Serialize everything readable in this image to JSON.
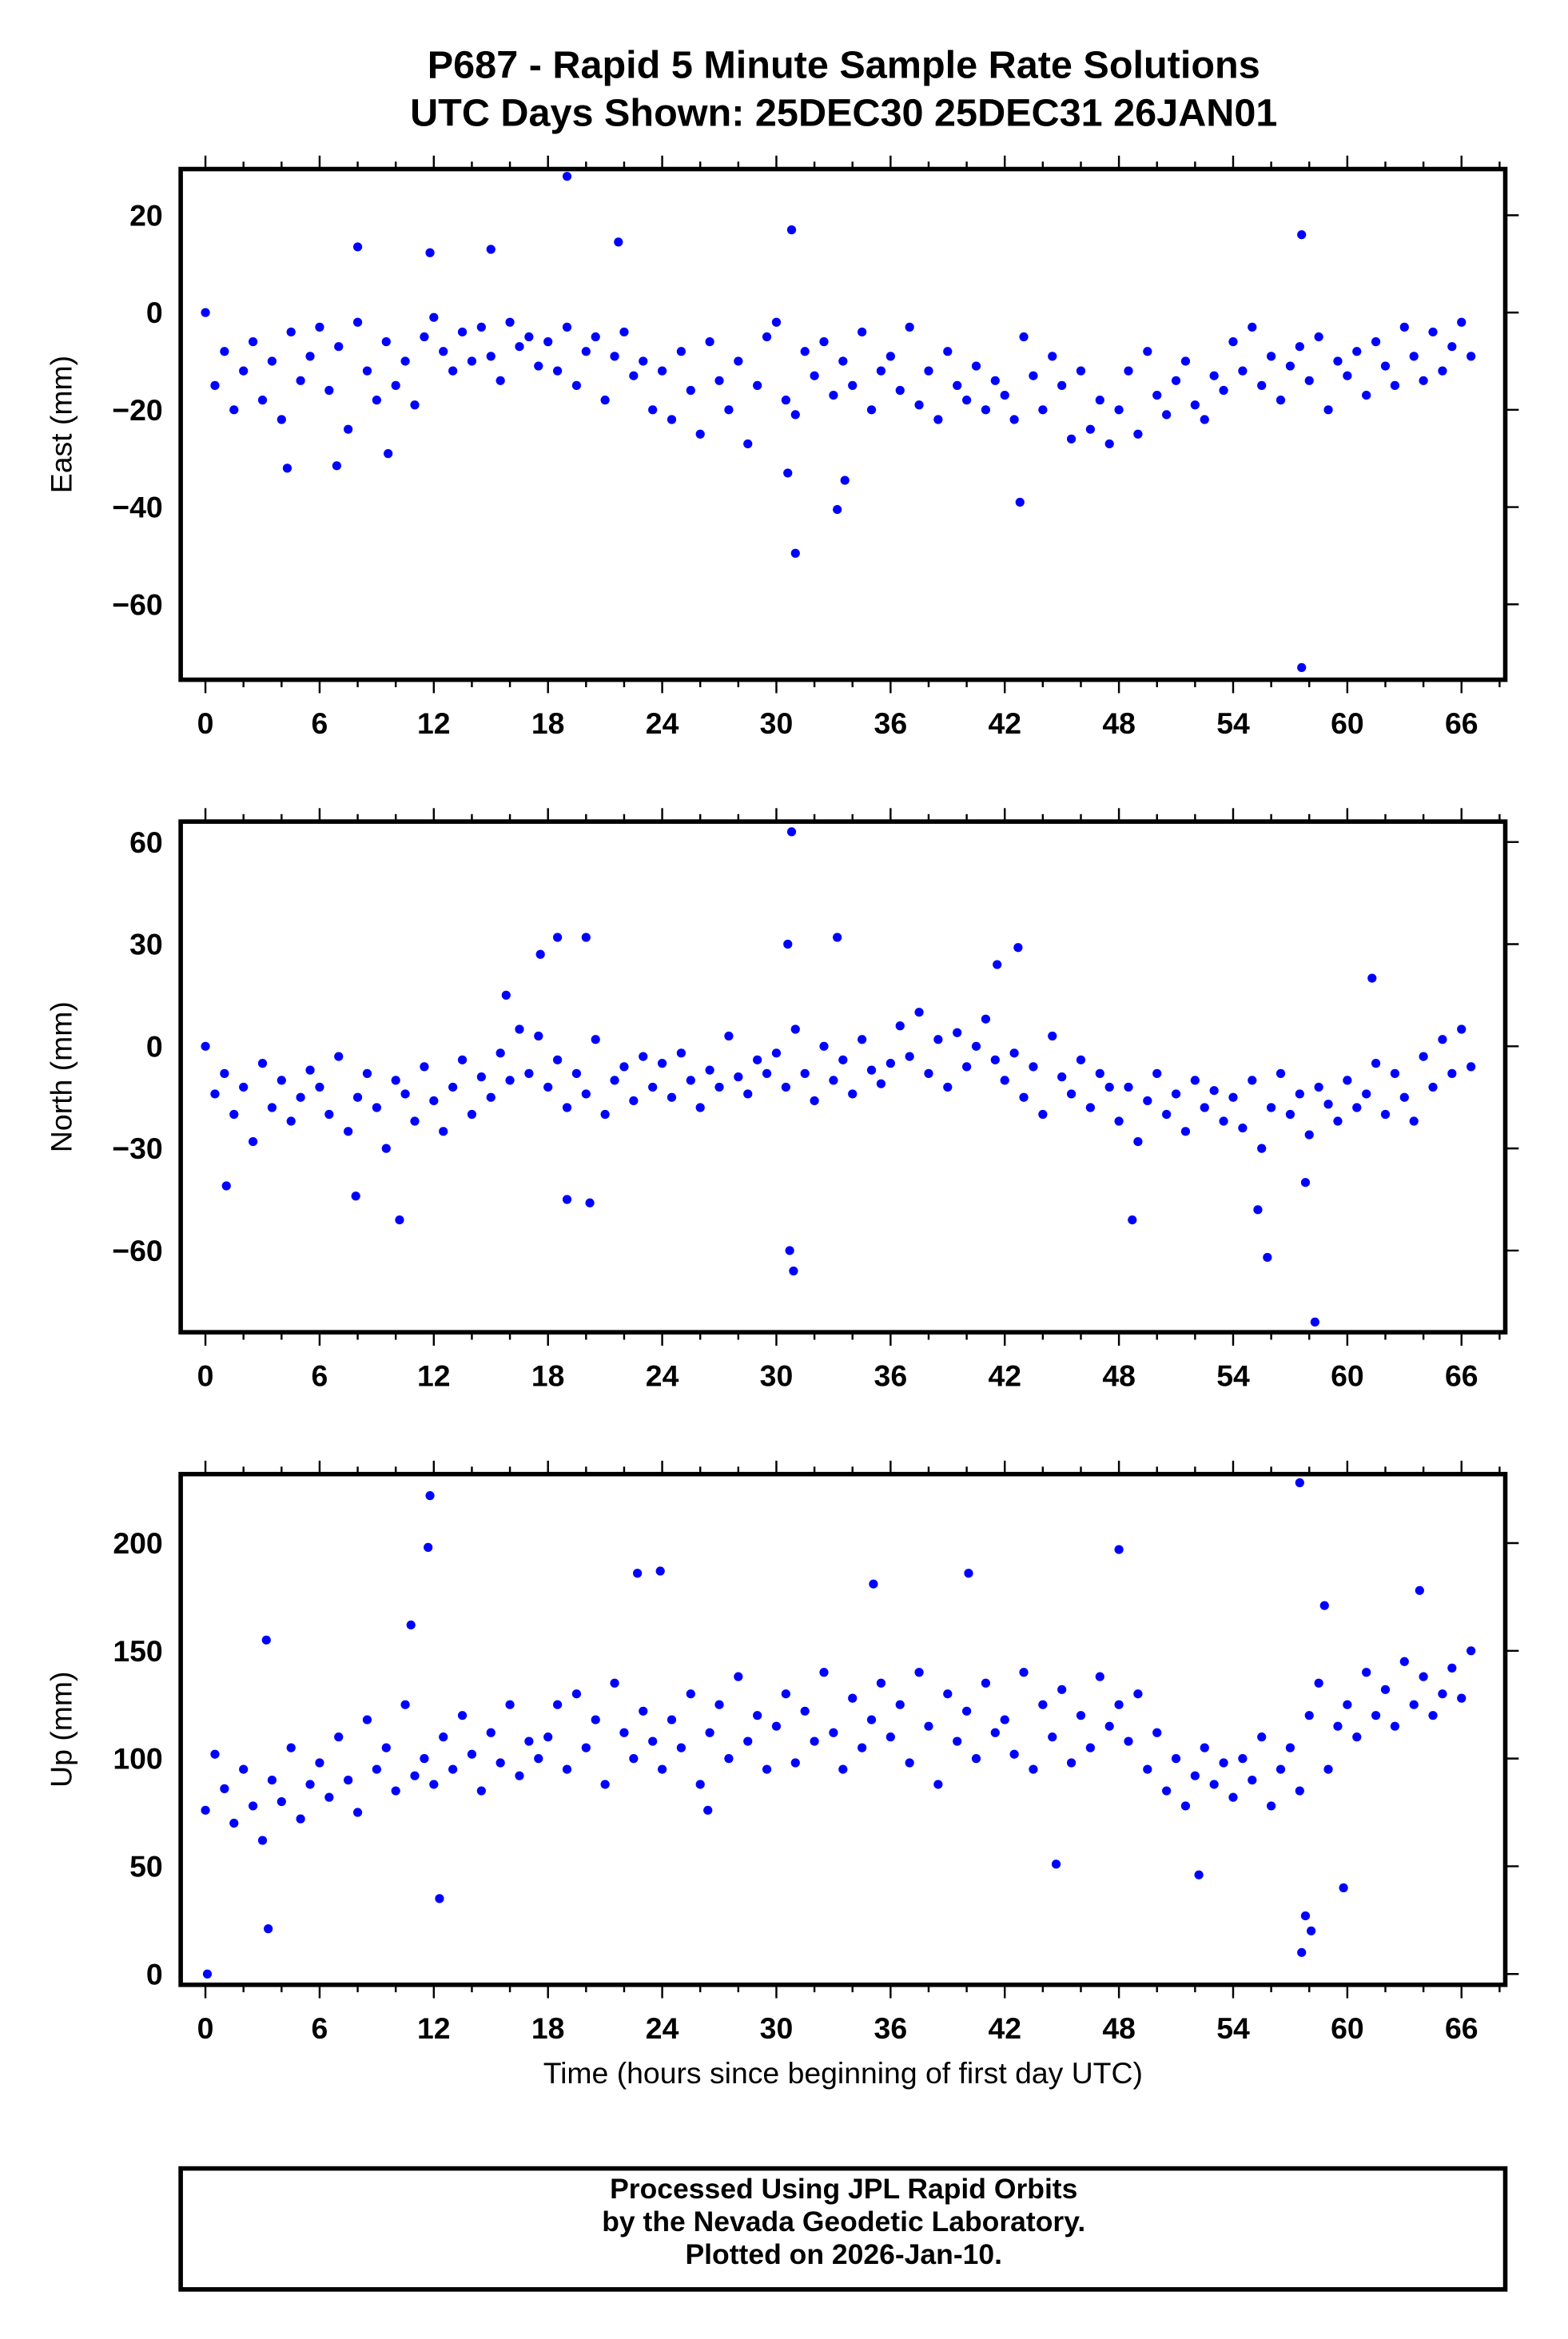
{
  "title_line1": "P687 - Rapid 5 Minute Sample Rate Solutions",
  "title_line2": "UTC Days Shown:  25DEC30 25DEC31 26JAN01",
  "footer": [
    "Processed Using JPL Rapid Orbits",
    "by the Nevada Geodetic Laboratory.",
    "Plotted on 2026-Jan-10."
  ],
  "colors": {
    "points": "#0000ff",
    "frame": "#000000"
  },
  "chart_data": [
    {
      "type": "scatter",
      "ylabel": "East (mm)",
      "xlabel": "",
      "xlim": [
        -1.3,
        68.3
      ],
      "ylim": [
        -75.5,
        29.5
      ],
      "xticks": [
        0,
        6,
        12,
        18,
        24,
        30,
        36,
        42,
        48,
        54,
        60,
        66
      ],
      "yticks": [
        20,
        0,
        -20,
        -40,
        -60
      ],
      "grid": false,
      "x_start": 0,
      "x_step": 0.5,
      "values": [
        0,
        -15,
        -8,
        -20,
        -12,
        -6,
        -18,
        -10,
        -22,
        -4,
        -14,
        -9,
        -3,
        -16,
        -7,
        -24,
        -2,
        -12,
        -18,
        -6,
        -15,
        -10,
        -19,
        -5,
        -1,
        -8,
        -12,
        -4,
        -10,
        -3,
        -9,
        -14,
        -2,
        -7,
        -5,
        -11,
        -6,
        -12,
        -3,
        -15,
        -8,
        -5,
        -18,
        -9,
        -4,
        -13,
        -10,
        -20,
        -12,
        -22,
        -8,
        -16,
        -25,
        -6,
        -14,
        -20,
        -10,
        -27,
        -15,
        -5,
        -2,
        -18,
        -21,
        -8,
        -13,
        -6,
        -17,
        -10,
        -15,
        -4,
        -20,
        -12,
        -9,
        -16,
        -3,
        -19,
        -12,
        -22,
        -8,
        -15,
        -18,
        -11,
        -20,
        -14,
        -17,
        -22,
        -5,
        -13,
        -20,
        -9,
        -15,
        -26,
        -12,
        -24,
        -18,
        -27,
        -20,
        -12,
        -25,
        -8,
        -17,
        -21,
        -14,
        -10,
        -19,
        -22,
        -13,
        -16,
        -6,
        -12,
        -3,
        -15,
        -9,
        -18,
        -11,
        -7,
        -14,
        -5,
        -20,
        -10,
        -13,
        -8,
        -17,
        -6,
        -11,
        -15,
        -3,
        -9,
        -14,
        -4,
        -12,
        -7,
        -2,
        -9
      ],
      "outliers": [
        [
          19,
          28
        ],
        [
          30.8,
          17
        ],
        [
          31,
          -49.5
        ],
        [
          33.2,
          -40.5
        ],
        [
          57.6,
          -73
        ],
        [
          57.6,
          16
        ],
        [
          8,
          13.5
        ],
        [
          11.8,
          12.3
        ],
        [
          15,
          13
        ],
        [
          21.7,
          14.5
        ],
        [
          42.8,
          -39
        ],
        [
          4.3,
          -32
        ],
        [
          6.9,
          -31.5
        ],
        [
          9.6,
          -29
        ],
        [
          33.6,
          -34.5
        ],
        [
          30.6,
          -33
        ]
      ]
    },
    {
      "type": "scatter",
      "ylabel": "North (mm)",
      "xlabel": "",
      "xlim": [
        -1.3,
        68.3
      ],
      "ylim": [
        -84,
        66
      ],
      "xticks": [
        0,
        6,
        12,
        18,
        24,
        30,
        36,
        42,
        48,
        54,
        60,
        66
      ],
      "yticks": [
        60,
        30,
        0,
        -30,
        -60
      ],
      "grid": false,
      "x_start": 0,
      "x_step": 0.5,
      "values": [
        0,
        -14,
        -8,
        -20,
        -12,
        -28,
        -5,
        -18,
        -10,
        -22,
        -15,
        -7,
        -12,
        -20,
        -3,
        -25,
        -15,
        -8,
        -18,
        -30,
        -10,
        -14,
        -22,
        -6,
        -16,
        -25,
        -12,
        -4,
        -20,
        -9,
        -15,
        -2,
        -10,
        5,
        -8,
        3,
        -12,
        -4,
        -18,
        -8,
        -14,
        2,
        -20,
        -10,
        -6,
        -16,
        -3,
        -12,
        -5,
        -15,
        -2,
        -10,
        -18,
        -7,
        -12,
        3,
        -9,
        -14,
        -4,
        -8,
        -2,
        -12,
        5,
        -8,
        -16,
        0,
        -10,
        -4,
        -14,
        2,
        -7,
        -11,
        -5,
        6,
        -3,
        10,
        -8,
        2,
        -12,
        4,
        -6,
        0,
        8,
        -4,
        -10,
        -2,
        -15,
        -6,
        -20,
        3,
        -9,
        -14,
        -4,
        -18,
        -8,
        -12,
        -22,
        -12,
        -28,
        -16,
        -8,
        -20,
        -14,
        -25,
        -10,
        -18,
        -13,
        -22,
        -15,
        -24,
        -10,
        -30,
        -18,
        -8,
        -20,
        -14,
        -26,
        -12,
        -17,
        -22,
        -10,
        -18,
        -14,
        -5,
        -20,
        -8,
        -15,
        -22,
        -3,
        -12,
        2,
        -8,
        5,
        -6
      ],
      "outliers": [
        [
          30.8,
          63
        ],
        [
          30.6,
          30
        ],
        [
          30.7,
          -60
        ],
        [
          30.9,
          -66
        ],
        [
          33.2,
          32
        ],
        [
          18.5,
          32
        ],
        [
          17.6,
          27
        ],
        [
          20,
          32
        ],
        [
          19,
          -45
        ],
        [
          20.2,
          -46
        ],
        [
          10.2,
          -51
        ],
        [
          48.7,
          -51
        ],
        [
          55.8,
          -62
        ],
        [
          57.8,
          -40
        ],
        [
          58.3,
          -81
        ],
        [
          42.7,
          29
        ],
        [
          41.6,
          24
        ],
        [
          61.3,
          20
        ],
        [
          1.1,
          -41
        ],
        [
          7.9,
          -44
        ],
        [
          15.8,
          15
        ],
        [
          55.3,
          -48
        ]
      ]
    },
    {
      "type": "scatter",
      "ylabel": "Up (mm)",
      "xlabel": "Time (hours since beginning of first day UTC)",
      "xlim": [
        -1.3,
        68.3
      ],
      "ylim": [
        -5,
        232
      ],
      "xticks": [
        0,
        6,
        12,
        18,
        24,
        30,
        36,
        42,
        48,
        54,
        60,
        66
      ],
      "yticks": [
        200,
        150,
        100,
        50,
        0
      ],
      "grid": false,
      "x_start": 0,
      "x_step": 0.5,
      "values": [
        76,
        102,
        86,
        70,
        95,
        78,
        62,
        90,
        80,
        105,
        72,
        88,
        98,
        82,
        110,
        90,
        75,
        118,
        95,
        105,
        85,
        125,
        92,
        100,
        88,
        110,
        95,
        120,
        102,
        85,
        112,
        98,
        125,
        92,
        108,
        100,
        110,
        125,
        95,
        130,
        105,
        118,
        88,
        135,
        112,
        100,
        122,
        108,
        95,
        118,
        105,
        130,
        88,
        112,
        125,
        100,
        138,
        108,
        120,
        95,
        115,
        130,
        98,
        122,
        108,
        140,
        112,
        95,
        128,
        105,
        118,
        135,
        110,
        125,
        98,
        140,
        115,
        88,
        130,
        108,
        122,
        100,
        135,
        112,
        118,
        102,
        140,
        95,
        125,
        110,
        132,
        98,
        120,
        105,
        138,
        115,
        125,
        108,
        130,
        95,
        112,
        85,
        100,
        78,
        92,
        105,
        88,
        98,
        82,
        100,
        90,
        110,
        78,
        95,
        105,
        85,
        120,
        135,
        95,
        115,
        125,
        110,
        140,
        120,
        132,
        115,
        145,
        125,
        138,
        120,
        130,
        142,
        128,
        150
      ],
      "outliers": [
        [
          0.1,
          0
        ],
        [
          11.8,
          222
        ],
        [
          11.7,
          198
        ],
        [
          12.3,
          35
        ],
        [
          3.3,
          21
        ],
        [
          22.7,
          186
        ],
        [
          23.9,
          187
        ],
        [
          48,
          197
        ],
        [
          57.5,
          228
        ],
        [
          57.6,
          10
        ],
        [
          57.8,
          27
        ],
        [
          58.1,
          20
        ],
        [
          59.8,
          40
        ],
        [
          40.1,
          186
        ],
        [
          35.1,
          181
        ],
        [
          44.7,
          51
        ],
        [
          52.2,
          46
        ],
        [
          26.4,
          76
        ],
        [
          3.2,
          155
        ],
        [
          10.8,
          162
        ],
        [
          63.8,
          178
        ],
        [
          58.8,
          171
        ]
      ]
    }
  ]
}
